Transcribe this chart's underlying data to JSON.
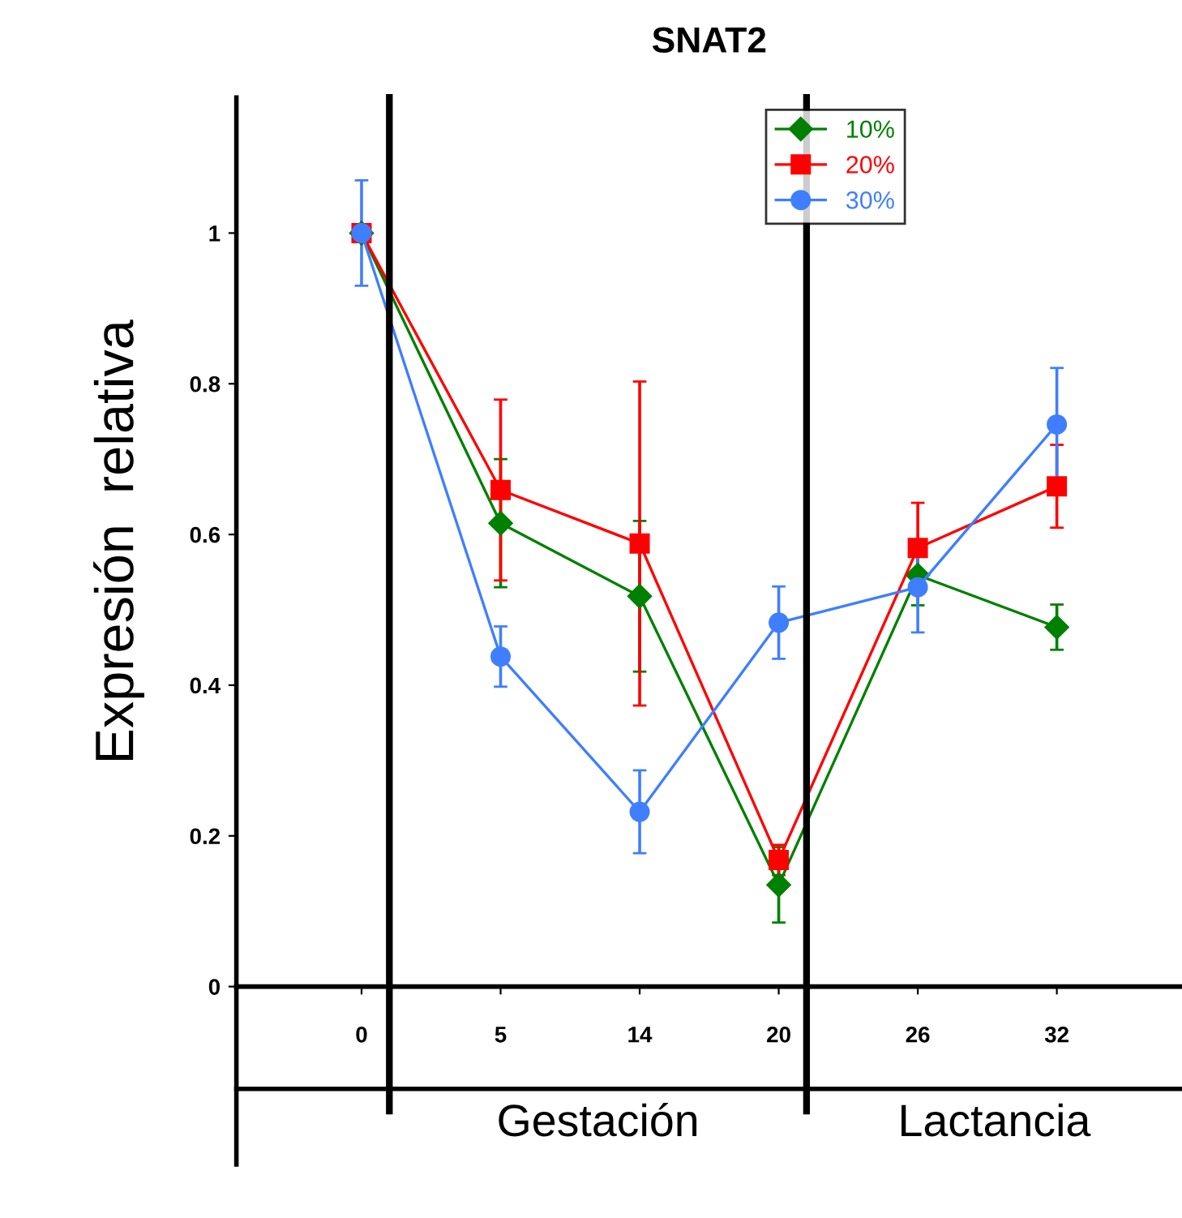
{
  "chart_data": {
    "type": "line",
    "title": "SNAT2",
    "ylabel": "Expresión  relativa",
    "categories": [
      "0",
      "5",
      "14",
      "20",
      "26",
      "32"
    ],
    "series": [
      {
        "name": "10%",
        "color": "#008000",
        "marker": "diamond",
        "values": [
          1.0,
          0.615,
          0.518,
          0.135,
          0.546,
          0.477
        ],
        "errors": [
          null,
          0.085,
          0.1,
          0.05,
          0.04,
          0.03
        ]
      },
      {
        "name": "20%",
        "color": "#ff0000",
        "marker": "square",
        "values": [
          1.0,
          0.659,
          0.588,
          0.168,
          0.582,
          0.664
        ],
        "errors": [
          null,
          0.12,
          0.215,
          0.02,
          0.06,
          0.055
        ]
      },
      {
        "name": "30%",
        "color": "#3f7fff",
        "marker": "circle",
        "values": [
          1.0,
          0.438,
          0.232,
          0.483,
          0.53,
          0.746
        ],
        "errors": [
          0.07,
          0.04,
          0.055,
          0.048,
          0.06,
          0.075
        ]
      }
    ],
    "annotations": [
      "Gestación",
      "Lactancia"
    ],
    "ref_lines": [
      {
        "axis": "x",
        "value": "0",
        "color": "#000000"
      },
      {
        "axis": "x",
        "value": "20",
        "color": "#000000"
      }
    ],
    "ylim": [
      0,
      1.18
    ],
    "yticks": [
      0,
      0.2,
      0.4,
      0.6,
      0.8,
      1
    ],
    "legend": "top right",
    "grid": false
  }
}
